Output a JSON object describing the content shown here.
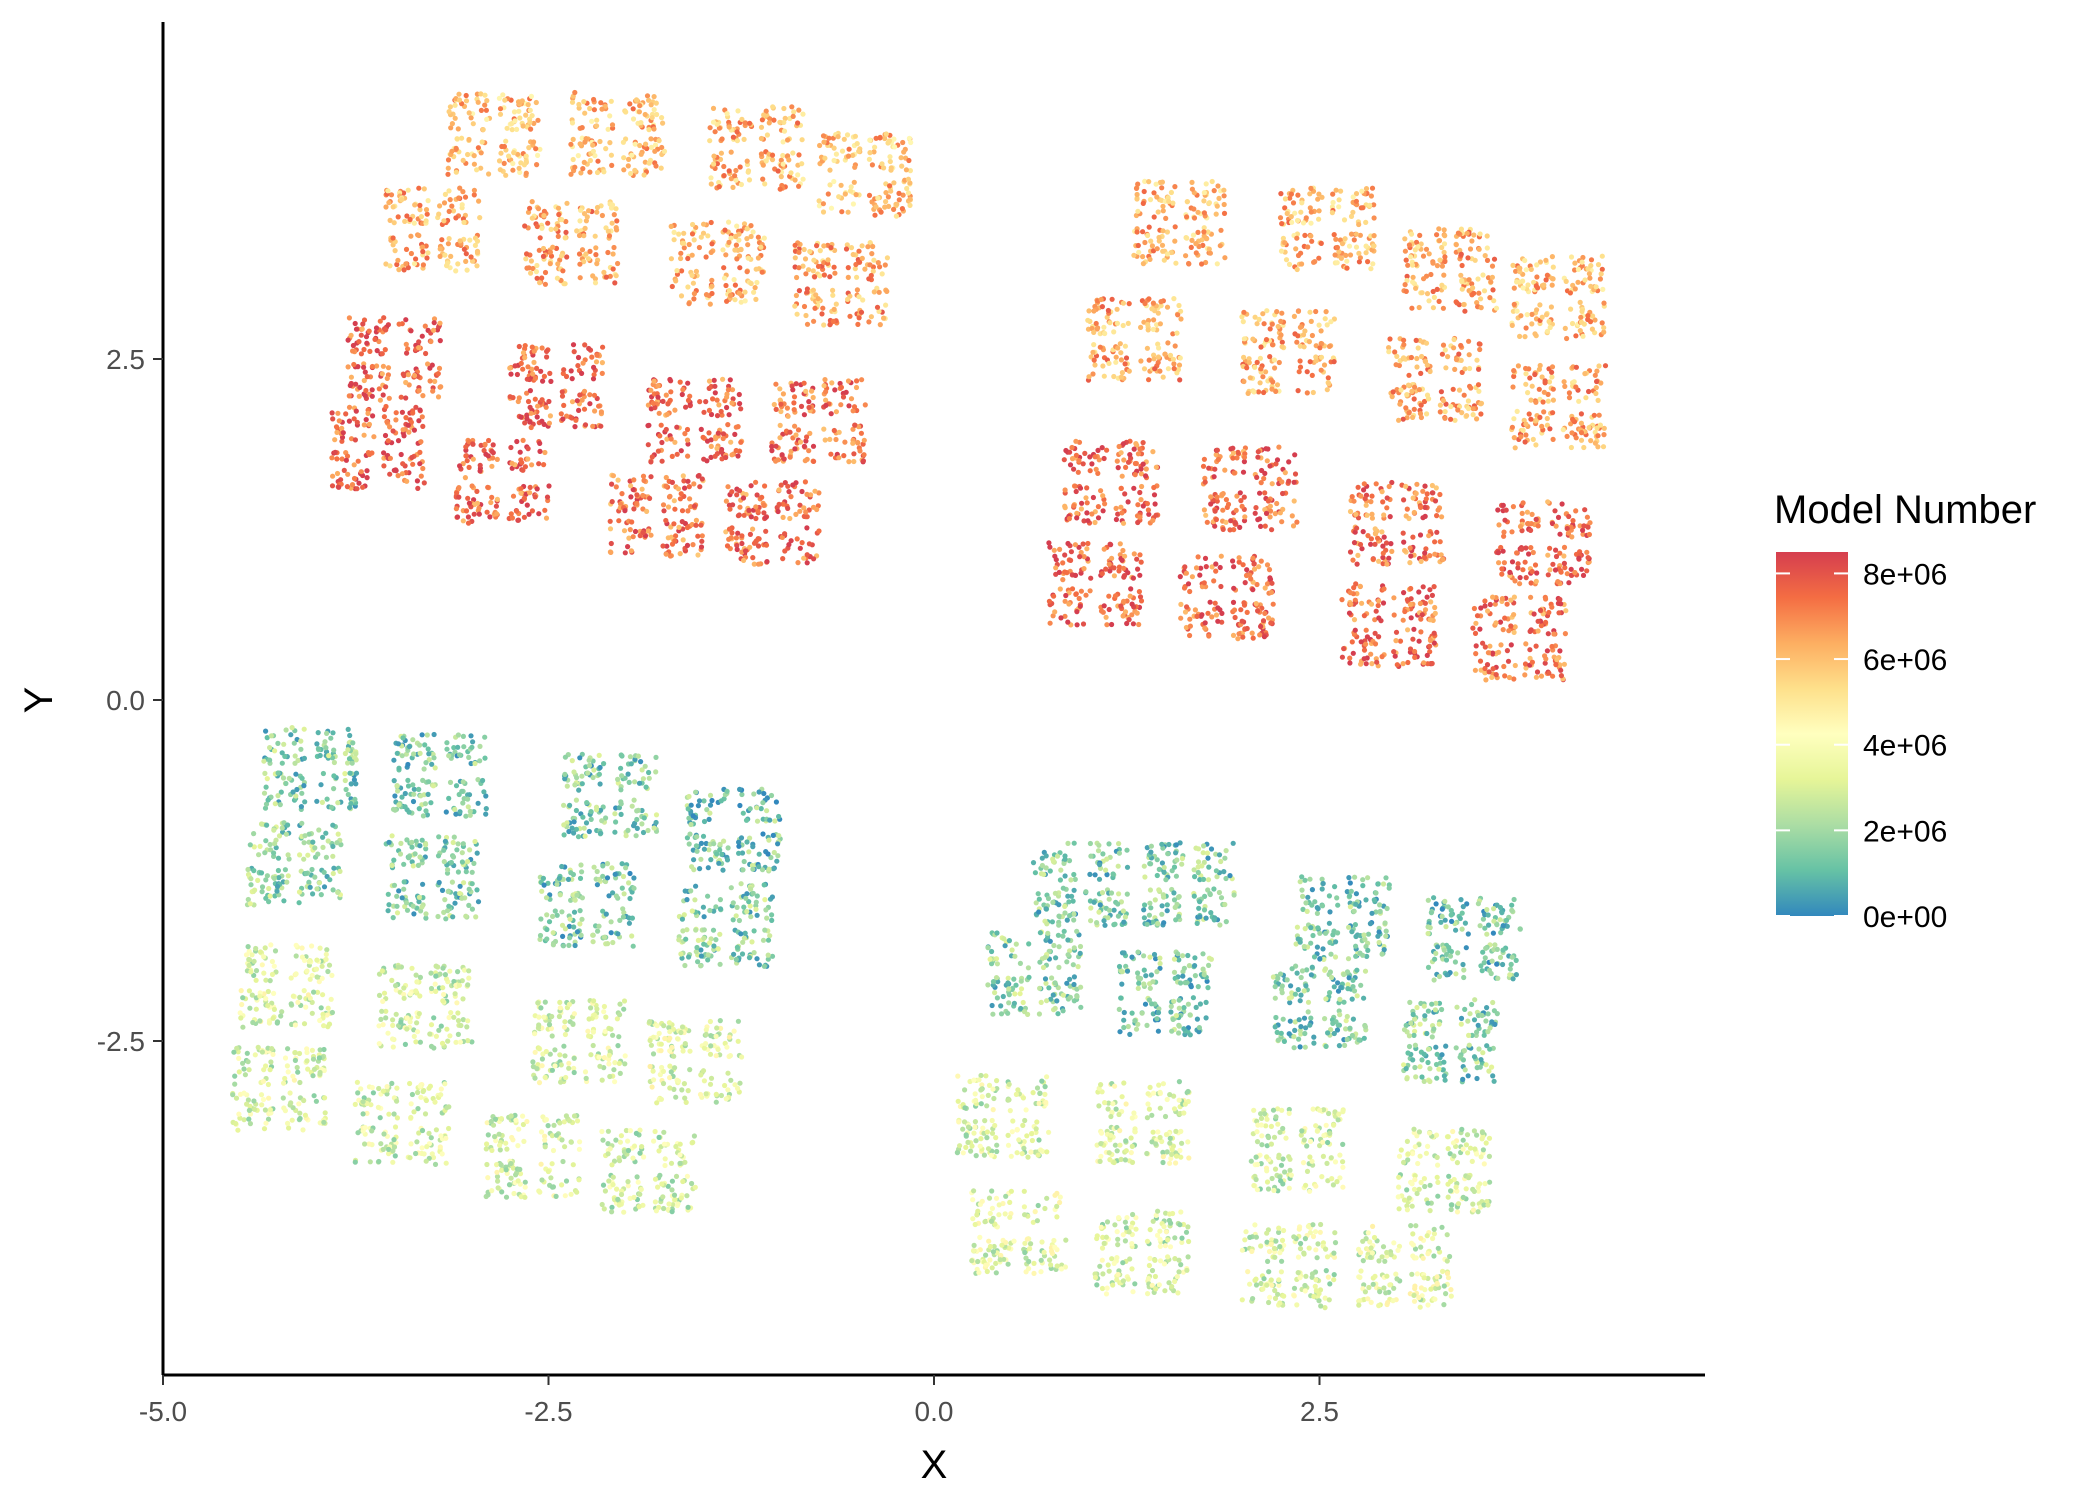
{
  "chart_data": {
    "type": "scatter",
    "title": "",
    "xlabel": "X",
    "ylabel": "Y",
    "xlim": [
      -5.0,
      5.0
    ],
    "ylim": [
      -5.0,
      5.0
    ],
    "x_ticks": [
      -5.0,
      -2.5,
      0.0,
      2.5
    ],
    "x_tick_labels": [
      "-5.0",
      "-2.5",
      "0.0",
      "2.5"
    ],
    "y_ticks": [
      -2.5,
      0.0,
      2.5
    ],
    "y_tick_labels": [
      "-2.5",
      "0.0",
      "2.5"
    ],
    "grid": false,
    "color_variable": "Model Number",
    "colorbar": {
      "title": "Model Number",
      "range": [
        0,
        8500000
      ],
      "ticks": [
        0,
        2000000,
        4000000,
        6000000,
        8000000
      ],
      "tick_labels": [
        "0e+00",
        "2e+06",
        "4e+06",
        "6e+06",
        "8e+06"
      ],
      "palette": "Spectral",
      "stops": [
        "#3288bd",
        "#66c2a5",
        "#abdda4",
        "#e6f598",
        "#ffffbf",
        "#fee08b",
        "#fdae61",
        "#f46d43",
        "#d53e4f"
      ]
    },
    "legend_position": "right",
    "clusters": [
      {
        "name": "upper-left",
        "blocks": [
          {
            "x": -2.85,
            "y": 4.15,
            "value": 6000000
          },
          {
            "x": -2.05,
            "y": 4.15,
            "value": 6100000
          },
          {
            "x": -1.15,
            "y": 4.05,
            "value": 6200000
          },
          {
            "x": -0.45,
            "y": 3.85,
            "value": 5900000
          },
          {
            "x": -3.25,
            "y": 3.45,
            "value": 6300000
          },
          {
            "x": -2.35,
            "y": 3.35,
            "value": 6400000
          },
          {
            "x": -1.4,
            "y": 3.2,
            "value": 6200000
          },
          {
            "x": -0.6,
            "y": 3.05,
            "value": 6500000
          },
          {
            "x": -3.5,
            "y": 2.5,
            "value": 7700000
          },
          {
            "x": -2.45,
            "y": 2.3,
            "value": 7600000
          },
          {
            "x": -1.55,
            "y": 2.05,
            "value": 7500000
          },
          {
            "x": -0.75,
            "y": 2.05,
            "value": 7400000
          },
          {
            "x": -3.6,
            "y": 1.85,
            "value": 7800000
          },
          {
            "x": -2.8,
            "y": 1.6,
            "value": 7500000
          },
          {
            "x": -1.8,
            "y": 1.35,
            "value": 7300000
          },
          {
            "x": -1.05,
            "y": 1.3,
            "value": 7400000
          }
        ]
      },
      {
        "name": "upper-right",
        "blocks": [
          {
            "x": 1.6,
            "y": 3.5,
            "value": 6100000
          },
          {
            "x": 2.55,
            "y": 3.45,
            "value": 6200000
          },
          {
            "x": 3.35,
            "y": 3.15,
            "value": 6300000
          },
          {
            "x": 4.05,
            "y": 2.95,
            "value": 6100000
          },
          {
            "x": 1.3,
            "y": 2.65,
            "value": 6400000
          },
          {
            "x": 2.3,
            "y": 2.55,
            "value": 6300000
          },
          {
            "x": 3.25,
            "y": 2.35,
            "value": 6500000
          },
          {
            "x": 4.05,
            "y": 2.15,
            "value": 6400000
          },
          {
            "x": 1.15,
            "y": 1.6,
            "value": 7600000
          },
          {
            "x": 2.05,
            "y": 1.55,
            "value": 7400000
          },
          {
            "x": 3.0,
            "y": 1.3,
            "value": 7300000
          },
          {
            "x": 3.95,
            "y": 1.15,
            "value": 7500000
          },
          {
            "x": 1.05,
            "y": 0.85,
            "value": 7700000
          },
          {
            "x": 1.9,
            "y": 0.75,
            "value": 7600000
          },
          {
            "x": 2.95,
            "y": 0.55,
            "value": 7500000
          },
          {
            "x": 3.8,
            "y": 0.45,
            "value": 7300000
          }
        ]
      },
      {
        "name": "lower-left",
        "blocks": [
          {
            "x": -4.05,
            "y": -0.5,
            "value": 1700000
          },
          {
            "x": -3.2,
            "y": -0.55,
            "value": 1500000
          },
          {
            "x": -2.1,
            "y": -0.7,
            "value": 1600000
          },
          {
            "x": -1.3,
            "y": -0.95,
            "value": 1400000
          },
          {
            "x": -4.15,
            "y": -1.2,
            "value": 1800000
          },
          {
            "x": -3.25,
            "y": -1.3,
            "value": 1600000
          },
          {
            "x": -2.25,
            "y": -1.5,
            "value": 1500000
          },
          {
            "x": -1.35,
            "y": -1.65,
            "value": 1700000
          },
          {
            "x": -4.2,
            "y": -2.1,
            "value": 3200000
          },
          {
            "x": -3.3,
            "y": -2.25,
            "value": 3000000
          },
          {
            "x": -2.3,
            "y": -2.5,
            "value": 3100000
          },
          {
            "x": -1.55,
            "y": -2.65,
            "value": 3300000
          },
          {
            "x": -4.25,
            "y": -2.85,
            "value": 3100000
          },
          {
            "x": -3.45,
            "y": -3.1,
            "value": 3000000
          },
          {
            "x": -2.6,
            "y": -3.35,
            "value": 3200000
          },
          {
            "x": -1.85,
            "y": -3.45,
            "value": 2900000
          }
        ]
      },
      {
        "name": "lower-right",
        "blocks": [
          {
            "x": 0.95,
            "y": -1.35,
            "value": 1500000
          },
          {
            "x": 1.65,
            "y": -1.35,
            "value": 1600000
          },
          {
            "x": 2.65,
            "y": -1.6,
            "value": 1500000
          },
          {
            "x": 3.5,
            "y": -1.75,
            "value": 1400000
          },
          {
            "x": 0.65,
            "y": -2.0,
            "value": 1700000
          },
          {
            "x": 1.5,
            "y": -2.15,
            "value": 1500000
          },
          {
            "x": 2.5,
            "y": -2.25,
            "value": 1600000
          },
          {
            "x": 3.35,
            "y": -2.5,
            "value": 1700000
          },
          {
            "x": 0.45,
            "y": -3.05,
            "value": 3100000
          },
          {
            "x": 1.35,
            "y": -3.1,
            "value": 3200000
          },
          {
            "x": 2.35,
            "y": -3.3,
            "value": 3000000
          },
          {
            "x": 3.3,
            "y": -3.45,
            "value": 3100000
          },
          {
            "x": 0.55,
            "y": -3.9,
            "value": 3200000
          },
          {
            "x": 1.35,
            "y": -4.05,
            "value": 3000000
          },
          {
            "x": 2.3,
            "y": -4.15,
            "value": 3100000
          },
          {
            "x": 3.05,
            "y": -4.15,
            "value": 3300000
          }
        ]
      }
    ]
  }
}
